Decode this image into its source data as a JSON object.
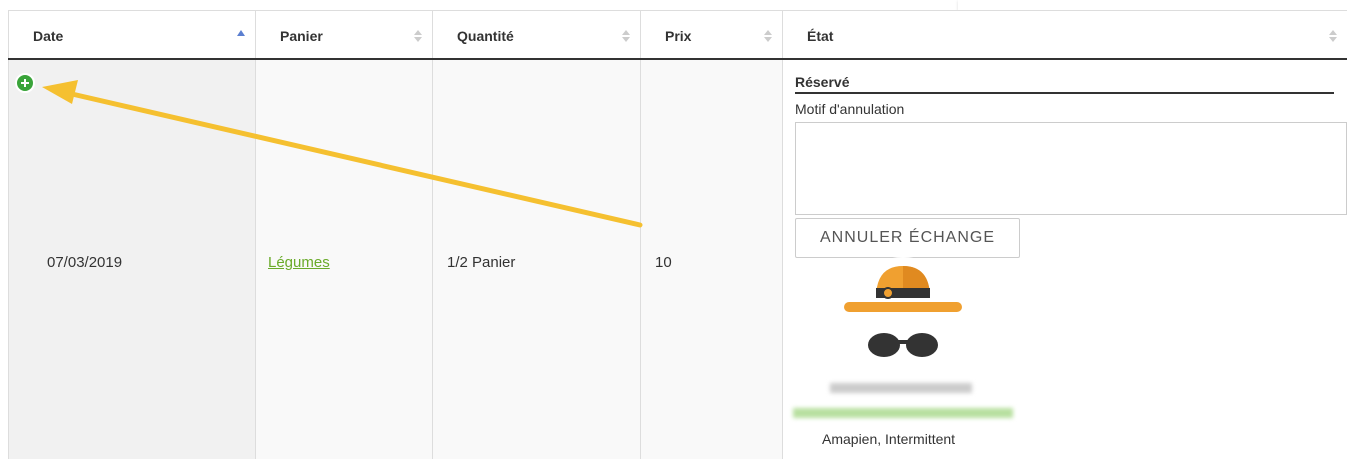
{
  "table": {
    "headers": [
      "Date",
      "Panier",
      "Quantité",
      "Prix",
      "État"
    ],
    "row": {
      "date": "07/03/2019",
      "panier": "Légumes",
      "quantite": "1/2 Panier",
      "prix": "10",
      "etat": {
        "status": "Réservé",
        "motif_label": "Motif d'annulation",
        "button": "ANNULER ÉCHANGE",
        "roles": "Amapien, Intermittent"
      }
    }
  }
}
